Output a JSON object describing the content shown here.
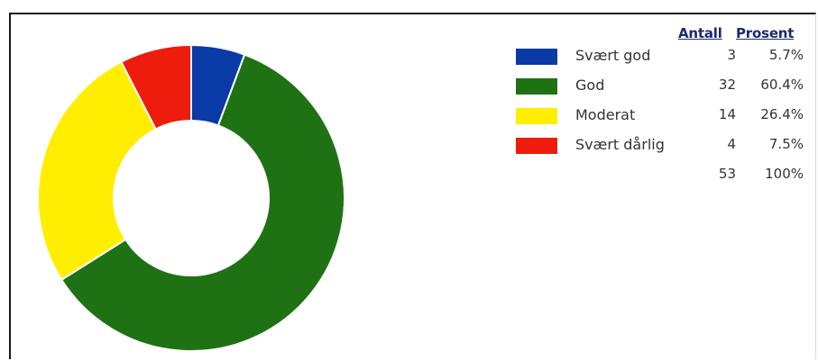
{
  "legend": {
    "count_header": "Antall",
    "percent_header": "Prosent",
    "total_count": "53",
    "total_percent": "100%"
  },
  "chart_data": {
    "type": "pie",
    "variant": "donut",
    "legend_position": "right",
    "categories": [
      "Svært god",
      "God",
      "Moderat",
      "Svært dårlig"
    ],
    "values": [
      3,
      32,
      14,
      4
    ],
    "percent_labels": [
      "5.7%",
      "60.4%",
      "26.4%",
      "7.5%"
    ],
    "count_labels": [
      "3",
      "32",
      "14",
      "4"
    ],
    "colors": [
      "#0a3aa6",
      "#1f7214",
      "#ffee00",
      "#ee1c0c"
    ]
  }
}
